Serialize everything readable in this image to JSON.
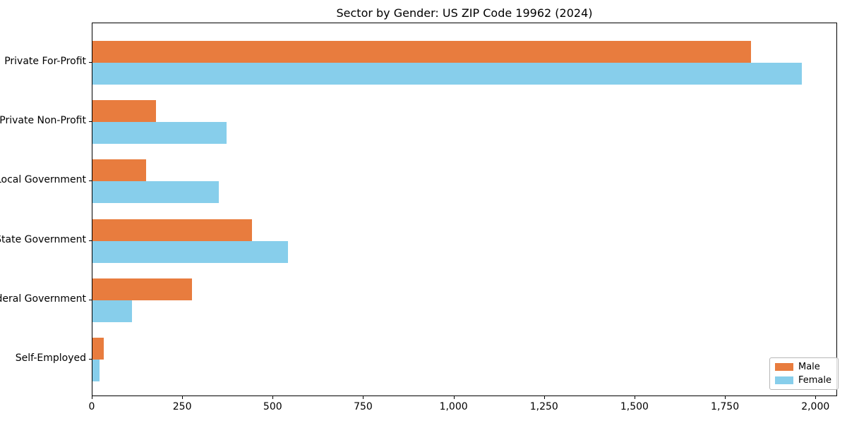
{
  "title": "Sector by Gender: US ZIP Code 19962 (2024)",
  "chart_data": {
    "type": "bar",
    "orientation": "horizontal",
    "title": "Sector by Gender: US ZIP Code 19962 (2024)",
    "categories": [
      "Private For-Profit",
      "Private Non-Profit",
      "Local Government",
      "State Government",
      "Federal Government",
      "Self-Employed"
    ],
    "series": [
      {
        "name": "Male",
        "color": "#e87c3e",
        "values": [
          1820,
          175,
          148,
          440,
          275,
          32
        ]
      },
      {
        "name": "Female",
        "color": "#87ceeb",
        "values": [
          1960,
          370,
          350,
          540,
          110,
          20
        ]
      }
    ],
    "xlabel": "",
    "ylabel": "",
    "xlim": [
      0,
      2060
    ],
    "xticks": [
      0,
      250,
      500,
      750,
      1000,
      1250,
      1500,
      1750,
      2000
    ],
    "xtick_labels": [
      "0",
      "250",
      "500",
      "750",
      "1,000",
      "1,250",
      "1,500",
      "1,750",
      "2,000"
    ],
    "grid": false,
    "legend_position": "lower right",
    "legend_labels": [
      "Male",
      "Female"
    ]
  }
}
